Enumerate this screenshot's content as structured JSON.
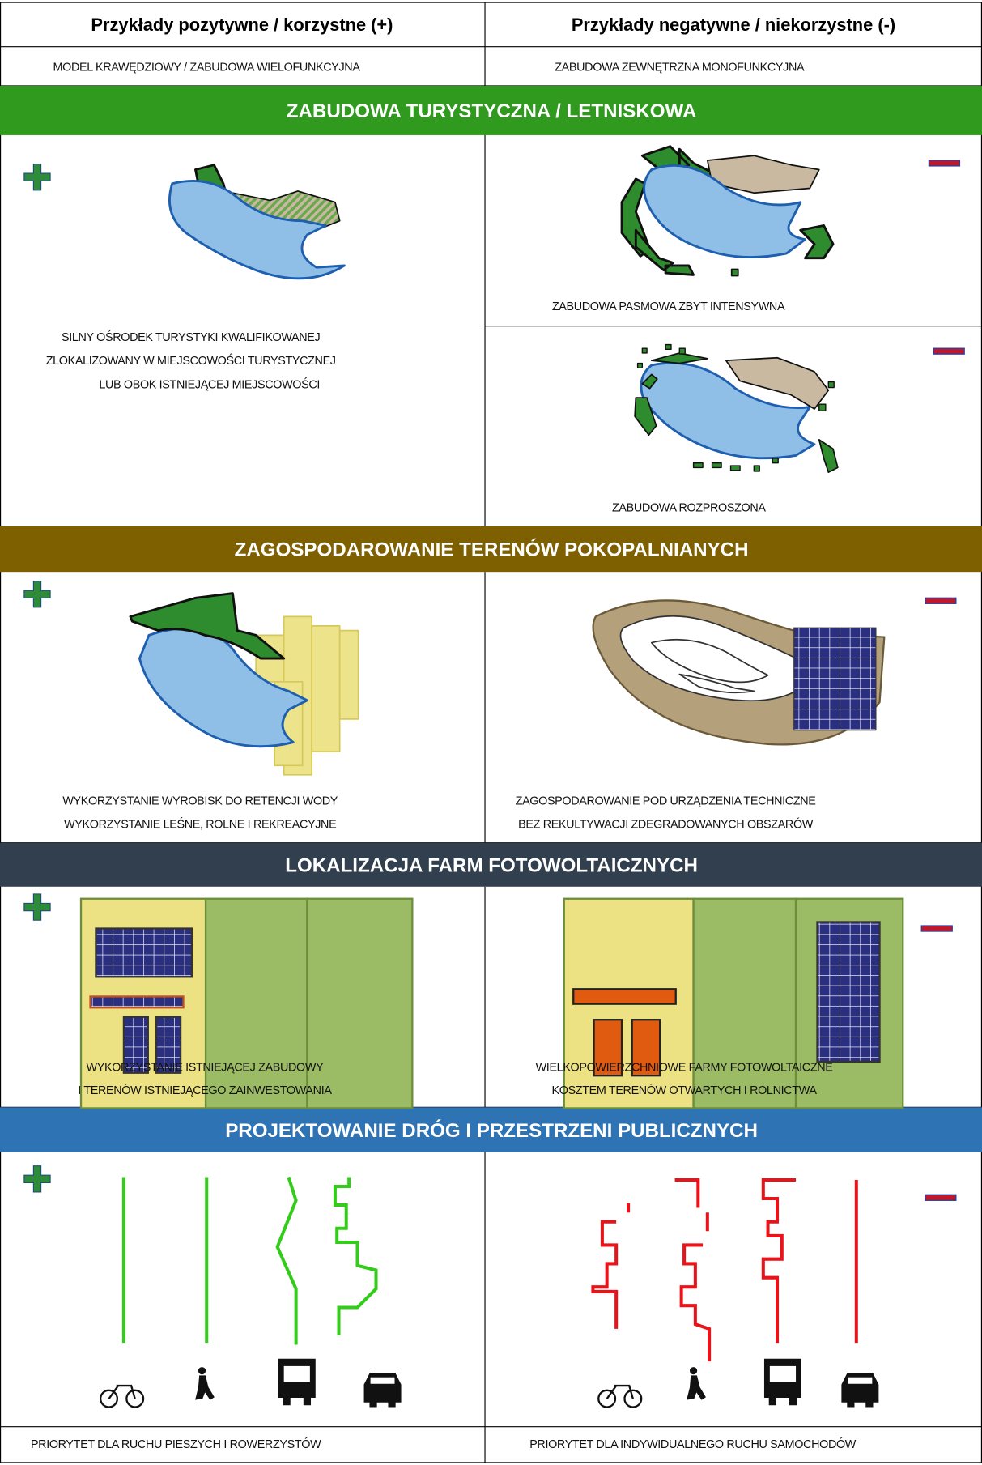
{
  "header": {
    "columns": [
      "Przykłady pozytywne / korzystne (+)",
      "Przykłady negatywne / niekorzystne (-)"
    ]
  },
  "intro": {
    "positive": "MODEL KRAWĘDZIOWY / ZABUDOWA WIELOFUNKCYJNA",
    "negative": "ZABUDOWA ZEWNĘTRZNA MONOFUNKCYJNA"
  },
  "sections": [
    {
      "title": "ZABUDOWA TURYSTYCZNA / LETNISKOWA",
      "positive": [
        "SILNY OŚRODEK TURYSTYKI KWALIFIKOWANEJ",
        "ZLOKALIZOWANY W MIEJSCOWOŚCI TURYSTYCZNEJ",
        "LUB OBOK ISTNIEJĄCEJ MIEJSCOWOŚCI"
      ],
      "negative": [
        [
          "ZABUDOWA PASMOWA ZBYT INTENSYWNA"
        ],
        [
          "ZABUDOWA ROZPROSZONA"
        ]
      ]
    },
    {
      "title": "ZAGOSPODAROWANIE TERENÓW POKOPALNIANYCH",
      "positive": [
        "WYKORZYSTANIE WYROBISK DO RETENCJI WODY",
        "WYKORZYSTANIE LEŚNE, ROLNE I REKREACYJNE"
      ],
      "negative": [
        [
          "ZAGOSPODAROWANIE POD URZĄDZENIA TECHNICZNE",
          "BEZ REKULTYWACJI ZDEGRADOWANYCH OBSZARÓW"
        ]
      ]
    },
    {
      "title": "LOKALIZACJA FARM FOTOWOLTAICZNYCH",
      "positive": [
        "WYKORZYSTANIE ISTNIEJĄCEJ ZABUDOWY",
        "I TERENÓW ISTNIEJĄCEGO ZAINWESTOWANIA"
      ],
      "negative": [
        [
          "WIELKOPOWIERZCHNIOWE FARMY FOTOWOLTAICZNE",
          "KOSZTEM TERENÓW OTWARTYCH I ROLNICTWA"
        ]
      ]
    },
    {
      "title": "PROJEKTOWANIE DRÓG I PRZESTRZENI PUBLICZNYCH",
      "positive": [
        "PRIORYTET DLA RUCHU PIESZYCH I ROWERZYSTÓW"
      ],
      "negative": [
        [
          "PRIORYTET DLA INDYWIDUALNEGO RUCHU SAMOCHODÓW"
        ]
      ]
    }
  ]
}
